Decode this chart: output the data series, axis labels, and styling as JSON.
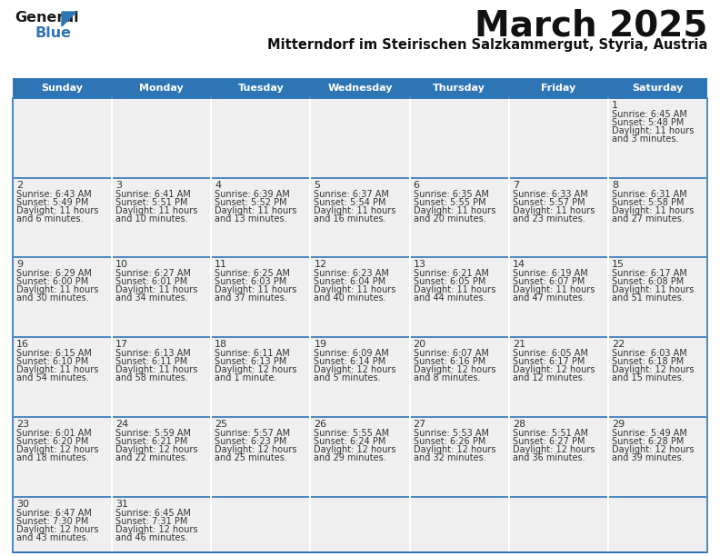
{
  "title": "March 2025",
  "subtitle": "Mitterndorf im Steirischen Salzkammergut, Styria, Austria",
  "header_bg": "#2E75B6",
  "header_text": "#FFFFFF",
  "cell_bg": "#EFEFEF",
  "text_color": "#333333",
  "border_color": "#2E75B6",
  "days_of_week": [
    "Sunday",
    "Monday",
    "Tuesday",
    "Wednesday",
    "Thursday",
    "Friday",
    "Saturday"
  ],
  "calendar_data": [
    [
      null,
      null,
      null,
      null,
      null,
      null,
      {
        "day": "1",
        "sunrise": "6:45 AM",
        "sunset": "5:48 PM",
        "daylight": "11 hours\nand 3 minutes."
      }
    ],
    [
      {
        "day": "2",
        "sunrise": "6:43 AM",
        "sunset": "5:49 PM",
        "daylight": "11 hours\nand 6 minutes."
      },
      {
        "day": "3",
        "sunrise": "6:41 AM",
        "sunset": "5:51 PM",
        "daylight": "11 hours\nand 10 minutes."
      },
      {
        "day": "4",
        "sunrise": "6:39 AM",
        "sunset": "5:52 PM",
        "daylight": "11 hours\nand 13 minutes."
      },
      {
        "day": "5",
        "sunrise": "6:37 AM",
        "sunset": "5:54 PM",
        "daylight": "11 hours\nand 16 minutes."
      },
      {
        "day": "6",
        "sunrise": "6:35 AM",
        "sunset": "5:55 PM",
        "daylight": "11 hours\nand 20 minutes."
      },
      {
        "day": "7",
        "sunrise": "6:33 AM",
        "sunset": "5:57 PM",
        "daylight": "11 hours\nand 23 minutes."
      },
      {
        "day": "8",
        "sunrise": "6:31 AM",
        "sunset": "5:58 PM",
        "daylight": "11 hours\nand 27 minutes."
      }
    ],
    [
      {
        "day": "9",
        "sunrise": "6:29 AM",
        "sunset": "6:00 PM",
        "daylight": "11 hours\nand 30 minutes."
      },
      {
        "day": "10",
        "sunrise": "6:27 AM",
        "sunset": "6:01 PM",
        "daylight": "11 hours\nand 34 minutes."
      },
      {
        "day": "11",
        "sunrise": "6:25 AM",
        "sunset": "6:03 PM",
        "daylight": "11 hours\nand 37 minutes."
      },
      {
        "day": "12",
        "sunrise": "6:23 AM",
        "sunset": "6:04 PM",
        "daylight": "11 hours\nand 40 minutes."
      },
      {
        "day": "13",
        "sunrise": "6:21 AM",
        "sunset": "6:05 PM",
        "daylight": "11 hours\nand 44 minutes."
      },
      {
        "day": "14",
        "sunrise": "6:19 AM",
        "sunset": "6:07 PM",
        "daylight": "11 hours\nand 47 minutes."
      },
      {
        "day": "15",
        "sunrise": "6:17 AM",
        "sunset": "6:08 PM",
        "daylight": "11 hours\nand 51 minutes."
      }
    ],
    [
      {
        "day": "16",
        "sunrise": "6:15 AM",
        "sunset": "6:10 PM",
        "daylight": "11 hours\nand 54 minutes."
      },
      {
        "day": "17",
        "sunrise": "6:13 AM",
        "sunset": "6:11 PM",
        "daylight": "11 hours\nand 58 minutes."
      },
      {
        "day": "18",
        "sunrise": "6:11 AM",
        "sunset": "6:13 PM",
        "daylight": "12 hours\nand 1 minute."
      },
      {
        "day": "19",
        "sunrise": "6:09 AM",
        "sunset": "6:14 PM",
        "daylight": "12 hours\nand 5 minutes."
      },
      {
        "day": "20",
        "sunrise": "6:07 AM",
        "sunset": "6:16 PM",
        "daylight": "12 hours\nand 8 minutes."
      },
      {
        "day": "21",
        "sunrise": "6:05 AM",
        "sunset": "6:17 PM",
        "daylight": "12 hours\nand 12 minutes."
      },
      {
        "day": "22",
        "sunrise": "6:03 AM",
        "sunset": "6:18 PM",
        "daylight": "12 hours\nand 15 minutes."
      }
    ],
    [
      {
        "day": "23",
        "sunrise": "6:01 AM",
        "sunset": "6:20 PM",
        "daylight": "12 hours\nand 18 minutes."
      },
      {
        "day": "24",
        "sunrise": "5:59 AM",
        "sunset": "6:21 PM",
        "daylight": "12 hours\nand 22 minutes."
      },
      {
        "day": "25",
        "sunrise": "5:57 AM",
        "sunset": "6:23 PM",
        "daylight": "12 hours\nand 25 minutes."
      },
      {
        "day": "26",
        "sunrise": "5:55 AM",
        "sunset": "6:24 PM",
        "daylight": "12 hours\nand 29 minutes."
      },
      {
        "day": "27",
        "sunrise": "5:53 AM",
        "sunset": "6:26 PM",
        "daylight": "12 hours\nand 32 minutes."
      },
      {
        "day": "28",
        "sunrise": "5:51 AM",
        "sunset": "6:27 PM",
        "daylight": "12 hours\nand 36 minutes."
      },
      {
        "day": "29",
        "sunrise": "5:49 AM",
        "sunset": "6:28 PM",
        "daylight": "12 hours\nand 39 minutes."
      }
    ],
    [
      {
        "day": "30",
        "sunrise": "6:47 AM",
        "sunset": "7:30 PM",
        "daylight": "12 hours\nand 43 minutes."
      },
      {
        "day": "31",
        "sunrise": "6:45 AM",
        "sunset": "7:31 PM",
        "daylight": "12 hours\nand 46 minutes."
      },
      null,
      null,
      null,
      null,
      null
    ]
  ],
  "logo_general_color": "#1a1a1a",
  "logo_blue_color": "#2E75B6",
  "logo_triangle_color": "#2E75B6"
}
